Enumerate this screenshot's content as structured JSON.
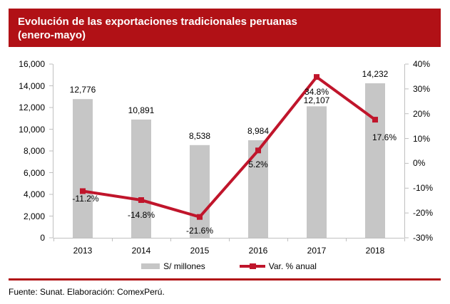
{
  "title": {
    "line1": "Evolución de las exportaciones tradicionales peruanas",
    "line2": "(enero-mayo)"
  },
  "chart_data": {
    "type": "bar+line combo",
    "categories": [
      "2013",
      "2014",
      "2015",
      "2016",
      "2017",
      "2018"
    ],
    "series": [
      {
        "name": "S/ millones",
        "type": "bar",
        "axis": "left",
        "values": [
          12776,
          10891,
          8538,
          8984,
          12107,
          14232
        ]
      },
      {
        "name": "Var. % anual",
        "type": "line",
        "axis": "right",
        "values": [
          -11.2,
          -14.8,
          -21.6,
          5.2,
          34.8,
          17.6
        ]
      }
    ],
    "left_axis": {
      "min": 0,
      "max": 16000,
      "step": 2000
    },
    "right_axis": {
      "min": -30,
      "max": 40,
      "step": 10,
      "suffix": "%"
    },
    "grid": false,
    "legend_position": "bottom"
  },
  "legend": {
    "bars": "S/ millones",
    "line": "Var. % anual"
  },
  "footer": {
    "text": "Fuente: Sunat. Elaboración: ComexPerú."
  },
  "colors": {
    "banner": "#b11116",
    "line": "#c0152b",
    "bar": "#c6c6c6",
    "axis": "#bfbfbf",
    "text": "#000000"
  }
}
